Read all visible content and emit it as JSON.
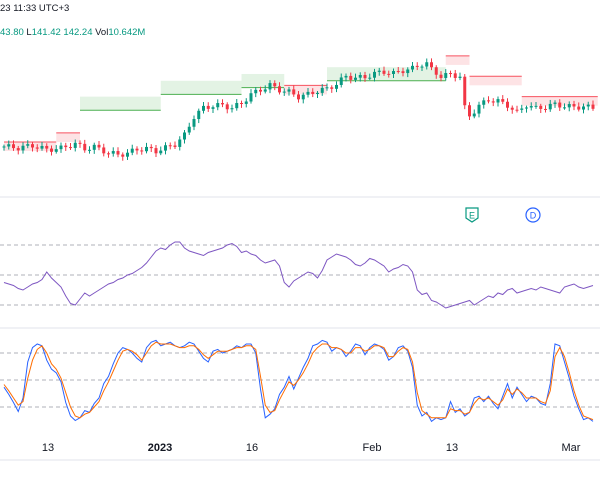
{
  "header": {
    "time_text": "23 11:33 UTC+3",
    "ohlc_text": {
      "open_partial": "43.80",
      "low_label": "L",
      "low_value": "141.42",
      "close_value": "142.24",
      "vol_label": "Vol",
      "vol_value": "10.642M"
    }
  },
  "colors": {
    "up": "#089981",
    "down": "#f23645",
    "stop_down_line": "#f7525f",
    "stop_down_fill": "#fde3e5",
    "stop_up_line": "#4caf50",
    "stop_up_fill": "#e3f3e4",
    "rsi_line": "#7e57c2",
    "stoch_k": "#2962ff",
    "stoch_d": "#ff6d00",
    "grid_dash": "#9598a1",
    "separator": "#e0e3eb",
    "axis_text": "#131722",
    "event_e": "#089981",
    "event_d": "#2962ff"
  },
  "events": [
    {
      "name": "earnings-icon",
      "label": "E"
    },
    {
      "name": "dividend-icon",
      "label": "D"
    }
  ],
  "x_axis": {
    "ticks": [
      "13",
      "2023",
      "16",
      "Feb",
      "13",
      "Mar"
    ]
  },
  "chart_data": [
    {
      "type": "candlestick",
      "description_ref": "price",
      "x_range": [
        0,
        125
      ],
      "y_range": [
        128,
        160
      ],
      "candles_seed": [
        [
          0,
          136.5
        ],
        [
          3,
          136.2
        ],
        [
          6,
          136.7
        ],
        [
          9,
          135.8
        ],
        [
          12,
          136.1
        ],
        [
          15,
          137.1
        ],
        [
          17,
          136.0
        ],
        [
          19,
          136.4
        ],
        [
          22,
          135.1
        ],
        [
          24,
          134.7
        ],
        [
          26,
          135.0
        ],
        [
          28,
          135.9
        ],
        [
          30,
          136.0
        ],
        [
          32,
          135.5
        ],
        [
          34,
          136.2
        ],
        [
          36,
          137.0
        ],
        [
          38,
          139.0
        ],
        [
          40,
          143.1
        ],
        [
          42,
          145.0
        ],
        [
          44,
          145.5
        ],
        [
          46,
          145.6
        ],
        [
          48,
          145.0
        ],
        [
          50,
          146.0
        ],
        [
          52,
          148.0
        ],
        [
          54,
          149.0
        ],
        [
          56,
          150.0
        ],
        [
          58,
          149.0
        ],
        [
          60,
          148.5
        ],
        [
          62,
          147.5
        ],
        [
          64,
          148.0
        ],
        [
          66,
          148.8
        ],
        [
          68,
          149.2
        ],
        [
          70,
          150.3
        ],
        [
          72,
          152.0
        ],
        [
          74,
          151.6
        ],
        [
          76,
          151.8
        ],
        [
          78,
          152.6
        ],
        [
          80,
          153.0
        ],
        [
          82,
          152.6
        ],
        [
          84,
          153.3
        ],
        [
          86,
          153.7
        ],
        [
          88,
          154.7
        ],
        [
          89,
          154.8
        ],
        [
          90,
          153.5
        ],
        [
          92,
          152.0
        ],
        [
          94,
          152.4
        ],
        [
          96,
          152.0
        ],
        [
          97,
          145.0
        ],
        [
          98,
          143.2
        ],
        [
          100,
          145.5
        ],
        [
          102,
          146.8
        ],
        [
          104,
          146.5
        ],
        [
          106,
          145.6
        ],
        [
          108,
          144.0
        ],
        [
          110,
          145.7
        ],
        [
          112,
          144.9
        ],
        [
          114,
          145.2
        ],
        [
          116,
          145.8
        ],
        [
          118,
          145.4
        ],
        [
          120,
          145.2
        ],
        [
          122,
          145.3
        ],
        [
          124,
          145.0
        ]
      ],
      "stop_segments": [
        {
          "dir": "down",
          "from": 0,
          "to": 11,
          "level": 137.5
        },
        {
          "dir": "down",
          "from": 11,
          "to": 16,
          "level": 139.5
        },
        {
          "dir": "up",
          "from": 16,
          "to": 33,
          "level": 144.5
        },
        {
          "dir": "up",
          "from": 33,
          "to": 50,
          "level": 148.0
        },
        {
          "dir": "up",
          "from": 50,
          "to": 59,
          "level": 149.5
        },
        {
          "dir": "down",
          "from": 59,
          "to": 68,
          "level": 150.0
        },
        {
          "dir": "up",
          "from": 68,
          "to": 93,
          "level": 151.0
        },
        {
          "dir": "down",
          "from": 93,
          "to": 98,
          "level": 156.5
        },
        {
          "dir": "down",
          "from": 98,
          "to": 109,
          "level": 152.0
        },
        {
          "dir": "down",
          "from": 109,
          "to": 125,
          "level": 147.5
        }
      ]
    },
    {
      "type": "line",
      "description_ref": "rsi",
      "y_range": [
        20,
        80
      ],
      "levels": [
        70,
        50,
        30
      ],
      "series": [
        {
          "values": [
            45,
            44,
            43,
            41,
            40,
            42,
            44,
            45,
            47,
            52,
            48,
            45,
            42,
            36,
            31,
            30,
            34,
            38,
            36,
            38,
            40,
            42,
            44,
            45,
            47,
            48,
            50,
            51,
            53,
            55,
            58,
            62,
            66,
            68,
            67,
            70,
            72,
            72,
            68,
            66,
            65,
            64,
            63,
            65,
            66,
            67,
            68,
            70,
            71,
            69,
            65,
            66,
            64,
            63,
            60,
            58,
            59,
            60,
            56,
            45,
            42,
            46,
            48,
            50,
            52,
            51,
            48,
            53,
            60,
            62,
            64,
            63,
            62,
            60,
            57,
            56,
            58,
            61,
            60,
            58,
            56,
            52,
            54,
            55,
            57,
            56,
            52,
            40,
            37,
            38,
            33,
            32,
            30,
            28,
            29,
            30,
            31,
            32,
            33,
            30,
            32,
            34,
            36,
            35,
            38,
            37,
            40,
            41,
            38,
            39,
            40,
            41,
            40,
            42,
            41,
            40,
            39,
            38,
            42,
            43,
            44,
            42,
            41,
            42,
            43
          ]
        }
      ]
    },
    {
      "type": "line",
      "description_ref": "stochastic",
      "y_range": [
        0,
        100
      ],
      "levels": [
        80,
        50,
        20
      ],
      "series": [
        {
          "values": [
            42,
            34,
            25,
            15,
            30,
            70,
            86,
            90,
            88,
            72,
            62,
            58,
            48,
            25,
            10,
            5,
            8,
            16,
            14,
            24,
            30,
            46,
            54,
            68,
            80,
            86,
            84,
            80,
            74,
            70,
            86,
            92,
            94,
            88,
            90,
            92,
            88,
            86,
            88,
            92,
            90,
            82,
            74,
            70,
            82,
            84,
            80,
            82,
            84,
            88,
            86,
            90,
            90,
            80,
            40,
            8,
            12,
            18,
            34,
            42,
            54,
            40,
            52,
            64,
            74,
            88,
            90,
            94,
            92,
            82,
            86,
            84,
            76,
            82,
            90,
            88,
            78,
            86,
            90,
            88,
            84,
            72,
            76,
            86,
            88,
            82,
            64,
            22,
            10,
            14,
            4,
            8,
            6,
            8,
            26,
            14,
            18,
            10,
            14,
            30,
            32,
            26,
            32,
            24,
            18,
            32,
            46,
            30,
            42,
            34,
            26,
            32,
            30,
            24,
            22,
            46,
            90,
            88,
            70,
            52,
            32,
            18,
            6,
            8,
            4
          ]
        },
        {
          "values": [
            45,
            38,
            30,
            22,
            26,
            52,
            72,
            84,
            88,
            80,
            68,
            62,
            52,
            36,
            20,
            10,
            8,
            12,
            14,
            20,
            26,
            38,
            48,
            60,
            72,
            82,
            84,
            82,
            78,
            72,
            80,
            88,
            92,
            90,
            90,
            90,
            88,
            86,
            86,
            88,
            88,
            84,
            78,
            74,
            78,
            82,
            82,
            82,
            84,
            86,
            86,
            88,
            88,
            84,
            54,
            22,
            14,
            16,
            28,
            38,
            48,
            44,
            50,
            58,
            68,
            80,
            86,
            90,
            90,
            86,
            86,
            84,
            80,
            80,
            86,
            86,
            82,
            84,
            88,
            88,
            86,
            76,
            76,
            82,
            86,
            84,
            70,
            36,
            16,
            12,
            8,
            8,
            8,
            8,
            18,
            16,
            16,
            12,
            14,
            24,
            30,
            28,
            30,
            26,
            22,
            28,
            40,
            34,
            40,
            36,
            30,
            30,
            30,
            26,
            24,
            38,
            76,
            86,
            76,
            58,
            38,
            22,
            10,
            8,
            6
          ]
        }
      ]
    }
  ]
}
